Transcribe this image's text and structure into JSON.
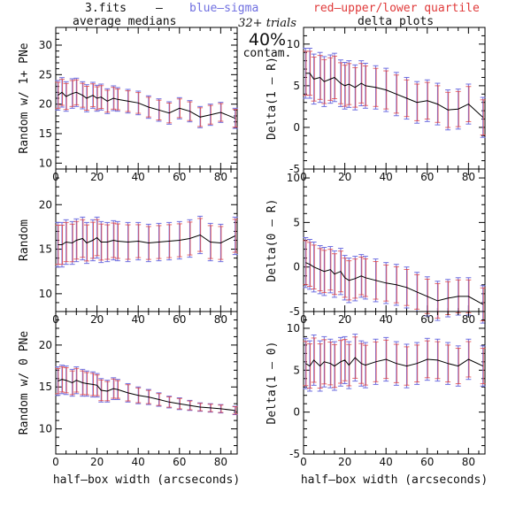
{
  "header": {
    "file": "3.fits",
    "dash": "–",
    "blue_label": "blue–sigma",
    "red_label": "red–upper/lower quartile",
    "col_left": "average medians",
    "col_right": "delta plots",
    "trials": "32+ trials",
    "contam_pct": "40%",
    "contam_word": "contam."
  },
  "colors": {
    "line": "#000000",
    "blue": "#6f6fe0",
    "red": "#e03a3a",
    "magenta": "#b04cb0"
  },
  "chart_data": [
    {
      "type": "line",
      "panel": "left-top",
      "ylabel": "Random w/ 1+ PNe",
      "xlabel": "",
      "xlim": [
        0,
        88
      ],
      "ylim": [
        9,
        33
      ],
      "xticks": [
        0,
        20,
        40,
        60,
        80
      ],
      "yticks": [
        10,
        15,
        20,
        25,
        30
      ],
      "x": [
        1,
        3,
        5,
        8,
        10,
        13,
        15,
        18,
        20,
        22,
        25,
        28,
        30,
        35,
        40,
        45,
        50,
        55,
        60,
        65,
        70,
        75,
        80,
        87
      ],
      "y": [
        21.5,
        22,
        21.3,
        21.8,
        22,
        21.5,
        21,
        21.5,
        21,
        21.2,
        20.5,
        21,
        20.8,
        20.5,
        20.2,
        19.5,
        19,
        18.5,
        19.3,
        18.8,
        17.8,
        18.2,
        18.6,
        17.6
      ],
      "err": [
        2.5,
        2.5,
        2.5,
        2.5,
        2.4,
        2.3,
        2.3,
        2.2,
        2.2,
        2.2,
        2.1,
        2.1,
        2,
        2,
        2,
        1.9,
        1.9,
        1.9,
        1.8,
        1.8,
        1.8,
        1.8,
        1.7,
        1.7
      ]
    },
    {
      "type": "line",
      "panel": "right-top",
      "ylabel": "Delta(1 – R)",
      "xlabel": "",
      "xlim": [
        0,
        88
      ],
      "ylim": [
        -5,
        12
      ],
      "xticks": [
        0,
        20,
        40,
        60,
        80
      ],
      "yticks": [
        -5,
        0,
        5,
        10
      ],
      "x": [
        1,
        3,
        5,
        8,
        10,
        13,
        15,
        18,
        20,
        22,
        25,
        28,
        30,
        35,
        40,
        45,
        50,
        55,
        60,
        65,
        70,
        75,
        80,
        87
      ],
      "y": [
        6.5,
        6.5,
        5.8,
        6,
        5.5,
        5.8,
        6,
        5.3,
        5,
        5.2,
        4.8,
        5.3,
        5,
        4.8,
        4.5,
        4,
        3.5,
        3,
        3.2,
        2.8,
        2.1,
        2.2,
        2.8,
        1.2
      ],
      "err": [
        3,
        3,
        3,
        3,
        3,
        2.9,
        2.9,
        2.8,
        2.8,
        2.8,
        2.7,
        2.7,
        2.7,
        2.6,
        2.6,
        2.6,
        2.5,
        2.5,
        2.5,
        2.5,
        2.4,
        2.4,
        2.4,
        2.4
      ]
    },
    {
      "type": "line",
      "panel": "left-middle",
      "ylabel": "Random",
      "xlabel": "",
      "xlim": [
        0,
        88
      ],
      "ylim": [
        8,
        24
      ],
      "xticks": [
        0,
        20,
        40,
        60,
        80
      ],
      "yticks": [
        10,
        15,
        20
      ],
      "x": [
        1,
        3,
        5,
        8,
        10,
        13,
        15,
        18,
        20,
        22,
        25,
        28,
        30,
        35,
        40,
        45,
        50,
        55,
        60,
        65,
        70,
        75,
        80,
        87
      ],
      "y": [
        15.5,
        15.5,
        15.8,
        15.7,
        16,
        16.2,
        15.7,
        16,
        16.3,
        15.8,
        15.8,
        16,
        15.9,
        15.8,
        15.9,
        15.7,
        15.8,
        15.9,
        16,
        16.2,
        16.6,
        15.8,
        15.7,
        16.5
      ],
      "err": [
        2.5,
        2.5,
        2.5,
        2.4,
        2.4,
        2.4,
        2.3,
        2.3,
        2.3,
        2.3,
        2.2,
        2.2,
        2.2,
        2.2,
        2.1,
        2.1,
        2.1,
        2.1,
        2.1,
        2.1,
        2.1,
        2.1,
        2.1,
        2.1
      ]
    },
    {
      "type": "line",
      "panel": "right-middle",
      "ylabel": "Delta(0 – R)",
      "xlabel": "",
      "xlim": [
        0,
        88
      ],
      "ylim": [
        -5,
        11
      ],
      "xticks": [
        0,
        20,
        40,
        60,
        80
      ],
      "yticks": [
        -5,
        0,
        5,
        10
      ],
      "x": [
        1,
        3,
        5,
        8,
        10,
        13,
        15,
        18,
        20,
        22,
        25,
        28,
        30,
        35,
        40,
        45,
        50,
        55,
        60,
        65,
        70,
        75,
        80,
        87
      ],
      "y": [
        0.5,
        0.3,
        0,
        -0.3,
        -0.5,
        -0.3,
        -0.8,
        -0.5,
        -1.2,
        -1.5,
        -1.3,
        -1,
        -1.2,
        -1.5,
        -1.8,
        -2,
        -2.3,
        -2.8,
        -3.3,
        -3.8,
        -3.5,
        -3.3,
        -3.3,
        -4.2
      ],
      "err": [
        2.8,
        2.8,
        2.8,
        2.7,
        2.7,
        2.6,
        2.6,
        2.6,
        2.5,
        2.5,
        2.5,
        2.4,
        2.4,
        2.4,
        2.3,
        2.3,
        2.3,
        2.2,
        2.2,
        2.2,
        2.1,
        2.1,
        2.1,
        2.1
      ]
    },
    {
      "type": "line",
      "panel": "left-bottom",
      "ylabel": "Random w/ 0 PNe",
      "xlabel": "half–box width (arcseconds)",
      "xlim": [
        0,
        88
      ],
      "ylim": [
        7,
        24
      ],
      "xticks": [
        0,
        20,
        40,
        60,
        80
      ],
      "yticks": [
        10,
        15,
        20
      ],
      "x": [
        1,
        3,
        5,
        8,
        10,
        13,
        15,
        18,
        20,
        22,
        25,
        28,
        30,
        35,
        40,
        45,
        50,
        55,
        60,
        65,
        70,
        75,
        80,
        87
      ],
      "y": [
        15.7,
        15.9,
        15.8,
        15.5,
        15.8,
        15.5,
        15.4,
        15.3,
        15.2,
        14.6,
        14.5,
        14.8,
        14.7,
        14.3,
        14,
        13.8,
        13.5,
        13.2,
        13,
        12.8,
        12.6,
        12.5,
        12.4,
        12.2
      ],
      "err": [
        1.7,
        1.7,
        1.7,
        1.6,
        1.6,
        1.6,
        1.5,
        1.5,
        1.4,
        1.4,
        1.3,
        1.3,
        1.2,
        1.1,
        1,
        0.9,
        0.8,
        0.7,
        0.7,
        0.6,
        0.5,
        0.5,
        0.5,
        0.5
      ]
    },
    {
      "type": "line",
      "panel": "right-bottom",
      "ylabel": "Delta(1 – 0)",
      "xlabel": "half–box width (arcseconds)",
      "xlim": [
        0,
        88
      ],
      "ylim": [
        -5,
        12
      ],
      "xticks": [
        0,
        20,
        40,
        60,
        80
      ],
      "yticks": [
        -5,
        0,
        5,
        10
      ],
      "x": [
        1,
        3,
        5,
        8,
        10,
        13,
        15,
        18,
        20,
        22,
        25,
        28,
        30,
        35,
        40,
        45,
        50,
        55,
        60,
        65,
        70,
        75,
        80,
        87
      ],
      "y": [
        5.8,
        5.5,
        6.2,
        5.5,
        6,
        5.8,
        5.5,
        6,
        6.2,
        5.6,
        6.5,
        5.8,
        5.6,
        6,
        6.3,
        5.8,
        5.5,
        5.8,
        6.3,
        6.2,
        5.8,
        5.5,
        6.3,
        5.5
      ],
      "err": [
        3,
        3,
        3,
        3,
        3,
        2.9,
        2.9,
        2.9,
        2.8,
        2.8,
        2.8,
        2.7,
        2.7,
        2.7,
        2.6,
        2.6,
        2.6,
        2.5,
        2.5,
        2.5,
        2.5,
        2.4,
        2.4,
        2.4
      ]
    }
  ]
}
